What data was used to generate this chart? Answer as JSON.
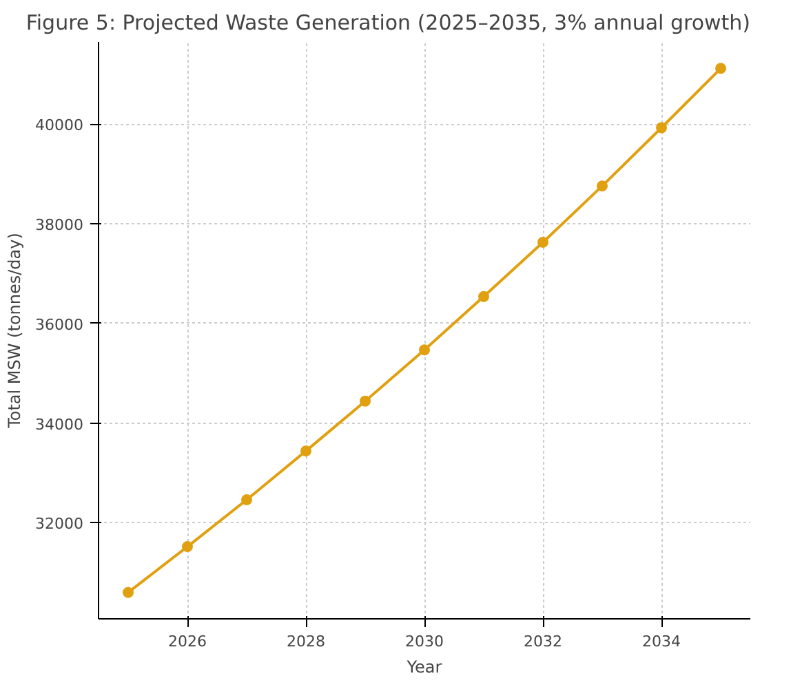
{
  "chart_data": {
    "type": "line",
    "title": "Figure 5: Projected Waste Generation (2025–2035, 3% annual growth)",
    "xlabel": "Year",
    "ylabel": "Total MSW (tonnes/day)",
    "x": [
      2025,
      2026,
      2027,
      2028,
      2029,
      2030,
      2031,
      2032,
      2033,
      2034,
      2035
    ],
    "series": [
      {
        "color": "#e0a010",
        "values": [
          30600,
          31520,
          32460,
          33440,
          34440,
          35470,
          36540,
          37630,
          38760,
          39930,
          41120
        ]
      }
    ],
    "xlim": [
      2024.5,
      2035.5
    ],
    "xticks": [
      2026,
      2028,
      2030,
      2032,
      2034
    ],
    "ylim": [
      30070,
      41650
    ],
    "yticks": [
      32000,
      34000,
      36000,
      38000,
      40000
    ],
    "grid": true,
    "marker": "circle",
    "line_style": "solid"
  }
}
